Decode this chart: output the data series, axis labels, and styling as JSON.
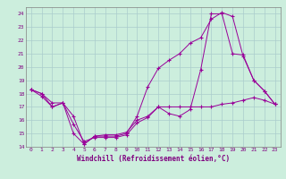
{
  "xlabel": "Windchill (Refroidissement éolien,°C)",
  "x_values": [
    0,
    1,
    2,
    3,
    4,
    5,
    6,
    7,
    8,
    9,
    10,
    11,
    12,
    13,
    14,
    15,
    16,
    17,
    18,
    19,
    20,
    21,
    22,
    23
  ],
  "line1": [
    18.3,
    17.8,
    17.0,
    17.3,
    16.3,
    14.2,
    14.8,
    14.8,
    14.8,
    15.0,
    16.3,
    18.5,
    19.9,
    20.5,
    21.0,
    21.8,
    22.2,
    23.6,
    24.1,
    23.8,
    20.8,
    19.0,
    18.2,
    17.2
  ],
  "line2": [
    18.3,
    18.0,
    17.0,
    17.3,
    15.0,
    14.2,
    14.8,
    14.9,
    14.9,
    15.1,
    16.0,
    16.3,
    17.0,
    17.0,
    17.0,
    17.0,
    17.0,
    17.0,
    17.2,
    17.3,
    17.5,
    17.7,
    17.5,
    17.2
  ],
  "line3": [
    18.3,
    18.0,
    17.3,
    17.3,
    15.7,
    14.4,
    14.7,
    14.7,
    14.7,
    14.9,
    15.8,
    16.2,
    17.0,
    16.5,
    16.3,
    16.8,
    19.8,
    24.0,
    24.0,
    21.0,
    20.9,
    19.0,
    18.2,
    17.2
  ],
  "ylim": [
    14,
    24.5
  ],
  "xlim": [
    -0.5,
    23.5
  ],
  "yticks": [
    14,
    15,
    16,
    17,
    18,
    19,
    20,
    21,
    22,
    23,
    24
  ],
  "xticks": [
    0,
    1,
    2,
    3,
    4,
    5,
    6,
    7,
    8,
    9,
    10,
    11,
    12,
    13,
    14,
    15,
    16,
    17,
    18,
    19,
    20,
    21,
    22,
    23
  ],
  "line_color": "#990099",
  "marker": "+",
  "marker_size": 2.5,
  "line_width": 0.7,
  "bg_color": "#cceedd",
  "grid_color": "#aacccc",
  "tick_color": "#800080",
  "label_color": "#800080",
  "xlabel_fontsize": 5.5,
  "tick_fontsize": 4.5,
  "spine_color": "#808080"
}
